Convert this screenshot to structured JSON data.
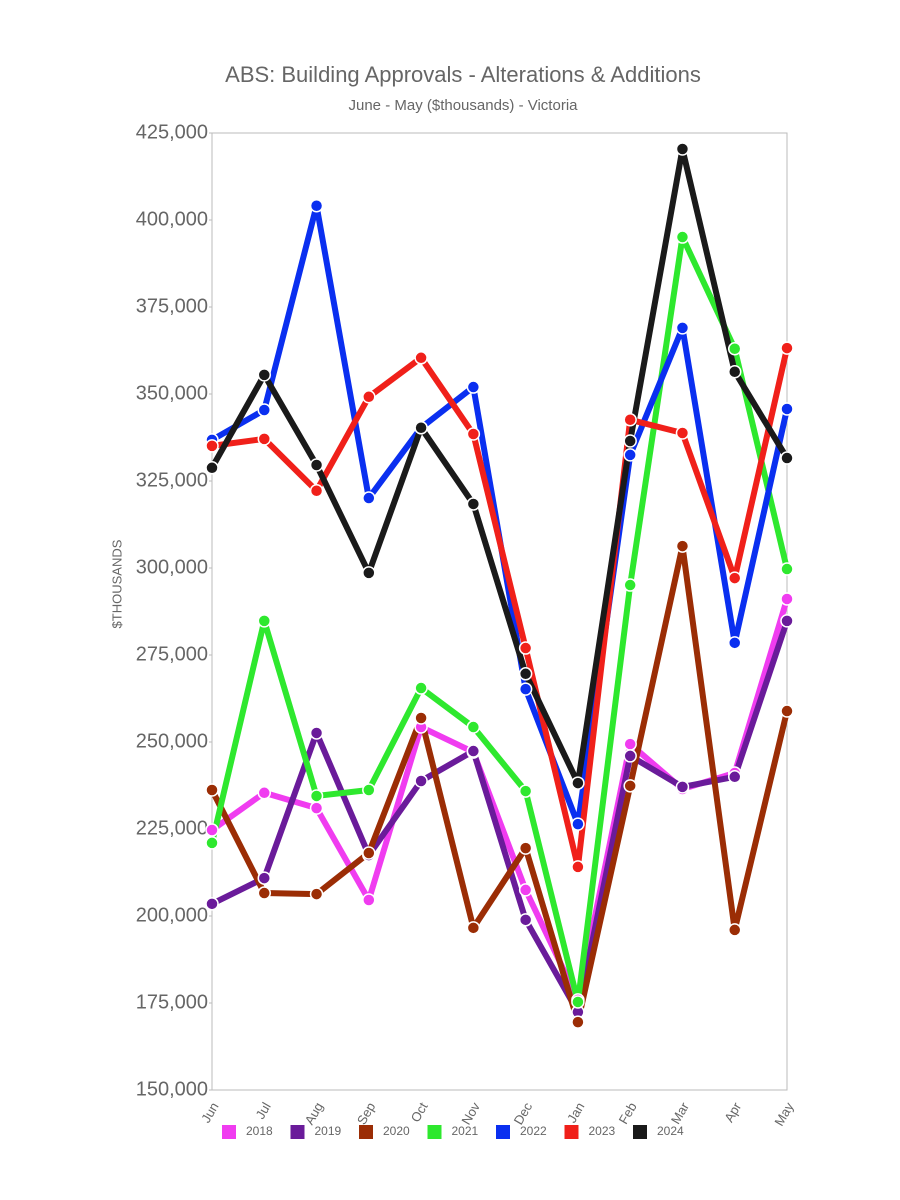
{
  "chart_data": {
    "type": "line",
    "title": "ABS: Building Approvals - Alterations & Additions",
    "subtitle": "June - May ($thousands) - Victoria",
    "y_label": "$THOUSANDS",
    "categories": [
      "Jun",
      "Jul",
      "Aug",
      "Sep",
      "Oct",
      "Nov",
      "Dec",
      "Jan",
      "Feb",
      "Mar",
      "Apr",
      "May"
    ],
    "ylim": [
      150000,
      425000
    ],
    "yticks": [
      {
        "value": 150000,
        "label": "150,000"
      },
      {
        "value": 175000,
        "label": "175,000"
      },
      {
        "value": 200000,
        "label": "200,000"
      },
      {
        "value": 225000,
        "label": "225,000"
      },
      {
        "value": 250000,
        "label": "250,000"
      },
      {
        "value": 275000,
        "label": "275,000"
      },
      {
        "value": 300000,
        "label": "300,000"
      },
      {
        "value": 325000,
        "label": "325,000"
      },
      {
        "value": 350000,
        "label": "350,000"
      },
      {
        "value": 375000,
        "label": "375,000"
      },
      {
        "value": 400000,
        "label": "400,000"
      },
      {
        "value": 425000,
        "label": "425,000"
      }
    ],
    "grid": false,
    "legend": "bottom",
    "series": [
      {
        "name": "2018",
        "color": "#f03cf0",
        "values": [
          224700,
          235400,
          231000,
          204600,
          254300,
          247100,
          207500,
          175900,
          249400,
          236500,
          241100,
          291100
        ]
      },
      {
        "name": "2019",
        "color": "#6a1b9a",
        "values": [
          203500,
          210900,
          252600,
          217500,
          238800,
          247400,
          198900,
          172400,
          246000,
          237100,
          240000,
          284800
        ]
      },
      {
        "name": "2020",
        "color": "#9b2d05",
        "values": [
          236200,
          206600,
          206300,
          218100,
          256900,
          196600,
          219500,
          169500,
          237400,
          306300,
          196000,
          258900
        ]
      },
      {
        "name": "2021",
        "color": "#2ee82e",
        "values": [
          221000,
          284800,
          234500,
          236200,
          265500,
          254300,
          235900,
          175300,
          295100,
          395100,
          363000,
          299700
        ]
      },
      {
        "name": "2022",
        "color": "#0a2ff0",
        "values": [
          336800,
          345400,
          404100,
          320100,
          340300,
          352000,
          265200,
          226400,
          332500,
          369000,
          278500,
          345700
        ]
      },
      {
        "name": "2023",
        "color": "#f0201a",
        "values": [
          335100,
          337100,
          322200,
          349200,
          360400,
          338500,
          277000,
          214100,
          342600,
          338800,
          297100,
          363200
        ]
      },
      {
        "name": "2024",
        "color": "#1a1a1a",
        "values": [
          328800,
          355500,
          329600,
          298600,
          340300,
          318400,
          269600,
          238200,
          336500,
          420400,
          356400,
          331600
        ]
      }
    ]
  }
}
